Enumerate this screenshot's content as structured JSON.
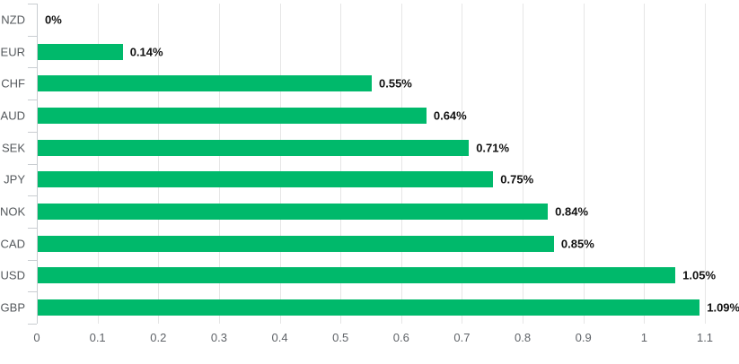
{
  "chart_data": {
    "type": "bar",
    "orientation": "horizontal",
    "title": "",
    "subtitle": "",
    "xlabel": "",
    "ylabel": "",
    "categories": [
      "NZD",
      "EUR",
      "CHF",
      "AUD",
      "SEK",
      "JPY",
      "NOK",
      "CAD",
      "USD",
      "GBP"
    ],
    "values": [
      0,
      0.14,
      0.55,
      0.64,
      0.71,
      0.75,
      0.84,
      0.85,
      1.05,
      1.09
    ],
    "value_labels": [
      "0%",
      "0.14%",
      "0.55%",
      "0.64%",
      "0.71%",
      "0.75%",
      "0.84%",
      "0.85%",
      "1.05%",
      "1.09%"
    ],
    "xlim": [
      0,
      1.1
    ],
    "xtick_values": [
      0,
      0.1,
      0.2,
      0.3,
      0.4,
      0.5,
      0.6,
      0.7,
      0.8,
      0.9,
      1,
      1.1
    ],
    "xtick_labels": [
      "0",
      "0.1",
      "0.2",
      "0.3",
      "0.4",
      "0.5",
      "0.6",
      "0.7",
      "0.8",
      "0.9",
      "1",
      "1.1"
    ],
    "grid": true,
    "legend": false,
    "colors": {
      "bar": "#00B96B",
      "gridline": "#E6E6E6",
      "axis": "#C9CDD1",
      "category_label": "#54585C",
      "xtick_label": "#5F6368",
      "value_label": "#111111",
      "background": "#FFFFFF"
    }
  }
}
